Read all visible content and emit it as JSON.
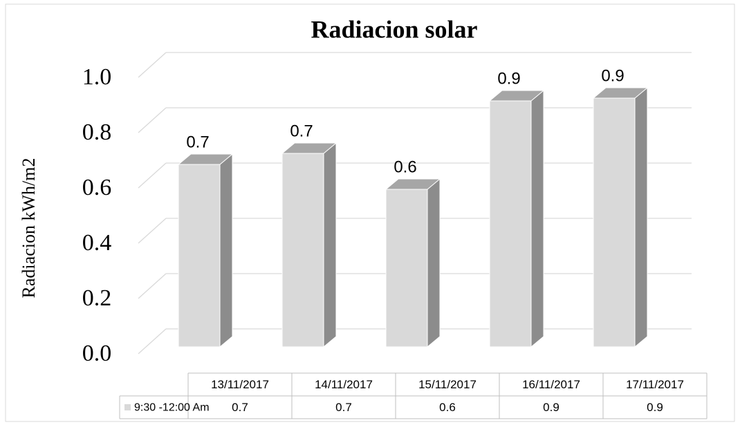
{
  "chart_data": {
    "type": "bar3d",
    "title": "Radiacion solar",
    "y_label": "Radiacion kWh/m2",
    "categories": [
      "13/11/2017",
      "14/11/2017",
      "15/11/2017",
      "16/11/2017",
      "17/11/2017"
    ],
    "series": [
      {
        "name": "9:30 -12:00 Am",
        "color": "#d9d9d9",
        "values": [
          0.66,
          0.7,
          0.57,
          0.89,
          0.9
        ],
        "value_labels": [
          "0.7",
          "0.7",
          "0.6",
          "0.9",
          "0.9"
        ]
      }
    ],
    "ylim": [
      0,
      1
    ],
    "yticks": [
      {
        "value": 0,
        "label": "0.0"
      },
      0.2,
      0.4,
      0.6,
      0.8,
      {
        "value": 1,
        "label": "1.0"
      }
    ],
    "grid": true,
    "data_table": true
  }
}
